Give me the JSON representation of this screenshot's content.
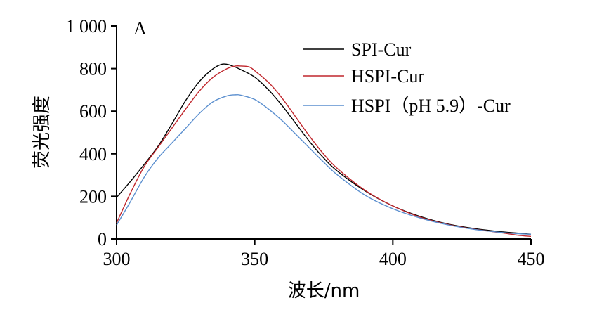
{
  "chart_data": {
    "type": "line",
    "panel_label": "A",
    "xlabel": "波长/nm",
    "ylabel": "荧光强度",
    "xlim": [
      300,
      450
    ],
    "ylim": [
      0,
      1000
    ],
    "x_ticks": [
      300,
      350,
      400,
      450
    ],
    "x_tick_labels": [
      "300",
      "350",
      "400",
      "450"
    ],
    "y_ticks": [
      0,
      200,
      400,
      600,
      800,
      1000
    ],
    "y_tick_labels": [
      "0",
      "200",
      "400",
      "600",
      "800",
      "1 000"
    ],
    "grid": false,
    "legend_position": "top-right",
    "series": [
      {
        "name": "SPI-Cur",
        "color": "#000000",
        "x": [
          300,
          305,
          310,
          315,
          320,
          325,
          330,
          335,
          338,
          340,
          342,
          345,
          350,
          355,
          360,
          365,
          370,
          375,
          380,
          390,
          400,
          410,
          420,
          430,
          440,
          445,
          450
        ],
        "y": [
          195,
          270,
          350,
          435,
          540,
          650,
          740,
          800,
          820,
          820,
          812,
          795,
          760,
          700,
          625,
          540,
          455,
          380,
          318,
          225,
          155,
          105,
          70,
          48,
          33,
          28,
          22
        ]
      },
      {
        "name": "HSPI-Cur",
        "color": "#c0272d",
        "x": [
          300,
          305,
          310,
          315,
          320,
          325,
          330,
          335,
          340,
          343,
          345,
          348,
          350,
          355,
          360,
          365,
          370,
          375,
          380,
          390,
          400,
          410,
          420,
          430,
          440,
          445,
          450
        ],
        "y": [
          75,
          215,
          340,
          430,
          520,
          610,
          695,
          760,
          800,
          812,
          812,
          808,
          790,
          735,
          660,
          570,
          480,
          398,
          330,
          228,
          155,
          102,
          68,
          45,
          28,
          18,
          12
        ]
      },
      {
        "name": "HSPI（pH 5.9）-Cur",
        "color": "#5b8fcf",
        "x": [
          300,
          305,
          310,
          315,
          320,
          325,
          330,
          335,
          340,
          343,
          345,
          350,
          355,
          360,
          365,
          370,
          375,
          380,
          390,
          400,
          410,
          420,
          430,
          440,
          445,
          450
        ],
        "y": [
          65,
          175,
          290,
          380,
          450,
          520,
          590,
          645,
          672,
          677,
          675,
          655,
          610,
          555,
          490,
          425,
          360,
          300,
          205,
          142,
          98,
          66,
          44,
          30,
          25,
          22
        ]
      }
    ]
  }
}
